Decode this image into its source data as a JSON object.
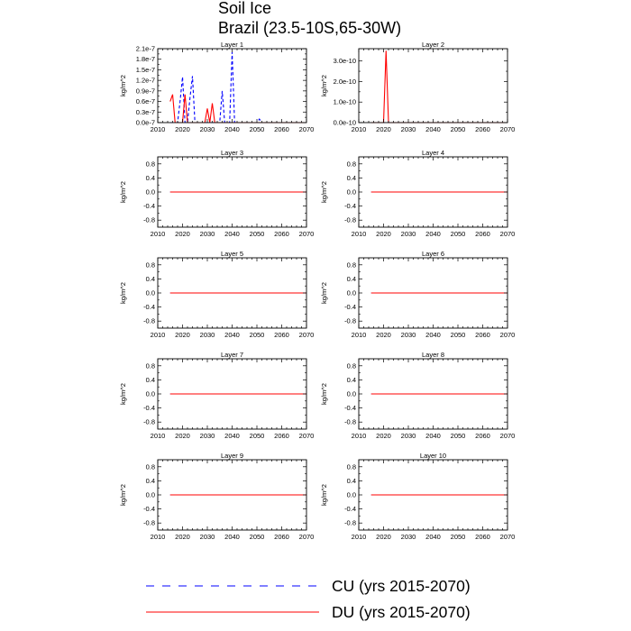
{
  "title": "Soil Ice",
  "subtitle": "Brazil (23.5-10S,65-30W)",
  "colors": {
    "CU": "#0000ff",
    "DU": "#ff0000"
  },
  "legend": [
    {
      "key": "CU",
      "label": "CU (yrs 2015-2070)",
      "style": "dashed"
    },
    {
      "key": "DU",
      "label": "DU (yrs 2015-2070)",
      "style": "solid"
    }
  ],
  "chart_data": [
    {
      "type": "line",
      "title": "Layer 1",
      "ylabel": "kg/m^2",
      "xlim": [
        2010,
        2070
      ],
      "ylim": [
        0,
        2.1e-07
      ],
      "xticks": [
        2010,
        2020,
        2030,
        2040,
        2050,
        2060,
        2070
      ],
      "yticks": [
        0,
        3e-08,
        6e-08,
        9e-08,
        1.2e-07,
        1.5e-07,
        1.8e-07,
        2.1e-07
      ],
      "yticklabels": [
        "0.0e-7",
        "0.3e-7",
        "0.6e-7",
        "0.9e-7",
        "1.2e-7",
        "1.5e-7",
        "1.8e-7",
        "2.1e-7"
      ],
      "series": [
        {
          "name": "CU",
          "x": [
            2015,
            2016,
            2017,
            2018,
            2019,
            2020,
            2021,
            2022,
            2023,
            2024,
            2025,
            2026,
            2027,
            2028,
            2029,
            2030,
            2031,
            2032,
            2033,
            2034,
            2035,
            2036,
            2037,
            2038,
            2039,
            2040,
            2041,
            2042,
            2043,
            2044,
            2045,
            2046,
            2047,
            2048,
            2049,
            2050,
            2051,
            2052,
            2053,
            2054,
            2055,
            2056,
            2057,
            2058,
            2059,
            2060,
            2061,
            2062,
            2063,
            2064,
            2065,
            2066,
            2067,
            2068,
            2069,
            2070
          ],
          "y": [
            0,
            0,
            0,
            0,
            6e-08,
            1.3e-07,
            0,
            0,
            7e-08,
            1.32e-07,
            0,
            0,
            0,
            0,
            0,
            0,
            0,
            0,
            0,
            0,
            0,
            9e-08,
            0,
            0,
            0,
            2e-07,
            0,
            0,
            0,
            0,
            0,
            0,
            0,
            0,
            0,
            0,
            1e-08,
            0,
            0,
            0,
            0,
            0,
            0,
            0,
            0,
            0,
            0,
            0,
            0,
            0,
            0,
            0,
            0,
            0,
            0,
            0
          ]
        },
        {
          "name": "DU",
          "x": [
            2015,
            2016,
            2017,
            2018,
            2019,
            2020,
            2021,
            2022,
            2023,
            2024,
            2025,
            2026,
            2027,
            2028,
            2029,
            2030,
            2031,
            2032,
            2033,
            2034,
            2035,
            2036,
            2037,
            2038,
            2039,
            2040,
            2041,
            2042,
            2043,
            2044,
            2045,
            2046,
            2047,
            2048,
            2049,
            2050,
            2051,
            2052,
            2053,
            2054,
            2055,
            2056,
            2057,
            2058,
            2059,
            2060,
            2061,
            2062,
            2063,
            2064,
            2065,
            2066,
            2067,
            2068,
            2069,
            2070
          ],
          "y": [
            6e-08,
            8e-08,
            0,
            0,
            0,
            0,
            8e-08,
            0,
            0,
            0,
            0,
            0,
            0,
            0,
            0,
            4e-08,
            0,
            5.5e-08,
            0,
            0,
            0,
            0,
            0,
            0,
            0,
            0,
            0,
            0,
            0,
            0,
            0,
            0,
            0,
            0,
            0,
            0,
            0,
            0,
            0,
            0,
            0,
            0,
            0,
            0,
            0,
            0,
            0,
            0,
            0,
            0,
            0,
            0,
            0,
            0,
            0,
            0
          ]
        }
      ]
    },
    {
      "type": "line",
      "title": "Layer 2",
      "ylabel": "kg/m^2",
      "xlim": [
        2010,
        2070
      ],
      "ylim": [
        0,
        3.6e-10
      ],
      "xticks": [
        2010,
        2020,
        2030,
        2040,
        2050,
        2060,
        2070
      ],
      "yticks": [
        0,
        1e-10,
        2e-10,
        3e-10
      ],
      "yticklabels": [
        "0.0e-10",
        "1.0e-10",
        "2.0e-10",
        "3.0e-10"
      ],
      "series": [
        {
          "name": "CU",
          "x": [
            2015,
            2070
          ],
          "y": [
            0,
            0
          ]
        },
        {
          "name": "DU",
          "x": [
            2015,
            2016,
            2017,
            2018,
            2019,
            2020,
            2021,
            2022,
            2023,
            2024,
            2070
          ],
          "y": [
            0,
            0,
            0,
            0,
            0,
            0,
            3.5e-10,
            0,
            0,
            0,
            0
          ]
        }
      ]
    },
    {
      "type": "line",
      "title": "Layer 3",
      "ylabel": "kg/m^2",
      "xlim": [
        2010,
        2070
      ],
      "ylim": [
        -1,
        1
      ],
      "xticks": [
        2010,
        2020,
        2030,
        2040,
        2050,
        2060,
        2070
      ],
      "yticks": [
        -0.8,
        -0.4,
        0,
        0.4,
        0.8
      ],
      "yticklabels": [
        "-0.8",
        "-0.4",
        "0.0",
        "0.4",
        "0.8"
      ],
      "series": [
        {
          "name": "CU",
          "x": [
            2015,
            2070
          ],
          "y": [
            0,
            0
          ]
        },
        {
          "name": "DU",
          "x": [
            2015,
            2070
          ],
          "y": [
            0,
            0
          ]
        }
      ]
    },
    {
      "type": "line",
      "title": "Layer 4",
      "ylabel": "kg/m^2",
      "xlim": [
        2010,
        2070
      ],
      "ylim": [
        -1,
        1
      ],
      "xticks": [
        2010,
        2020,
        2030,
        2040,
        2050,
        2060,
        2070
      ],
      "yticks": [
        -0.8,
        -0.4,
        0,
        0.4,
        0.8
      ],
      "yticklabels": [
        "-0.8",
        "-0.4",
        "0.0",
        "0.4",
        "0.8"
      ],
      "series": [
        {
          "name": "CU",
          "x": [
            2015,
            2070
          ],
          "y": [
            0,
            0
          ]
        },
        {
          "name": "DU",
          "x": [
            2015,
            2070
          ],
          "y": [
            0,
            0
          ]
        }
      ]
    },
    {
      "type": "line",
      "title": "Layer 5",
      "ylabel": "kg/m^2",
      "xlim": [
        2010,
        2070
      ],
      "ylim": [
        -1,
        1
      ],
      "xticks": [
        2010,
        2020,
        2030,
        2040,
        2050,
        2060,
        2070
      ],
      "yticks": [
        -0.8,
        -0.4,
        0,
        0.4,
        0.8
      ],
      "yticklabels": [
        "-0.8",
        "-0.4",
        "0.0",
        "0.4",
        "0.8"
      ],
      "series": [
        {
          "name": "CU",
          "x": [
            2015,
            2070
          ],
          "y": [
            0,
            0
          ]
        },
        {
          "name": "DU",
          "x": [
            2015,
            2070
          ],
          "y": [
            0,
            0
          ]
        }
      ]
    },
    {
      "type": "line",
      "title": "Layer 6",
      "ylabel": "kg/m^2",
      "xlim": [
        2010,
        2070
      ],
      "ylim": [
        -1,
        1
      ],
      "xticks": [
        2010,
        2020,
        2030,
        2040,
        2050,
        2060,
        2070
      ],
      "yticks": [
        -0.8,
        -0.4,
        0,
        0.4,
        0.8
      ],
      "yticklabels": [
        "-0.8",
        "-0.4",
        "0.0",
        "0.4",
        "0.8"
      ],
      "series": [
        {
          "name": "CU",
          "x": [
            2015,
            2070
          ],
          "y": [
            0,
            0
          ]
        },
        {
          "name": "DU",
          "x": [
            2015,
            2070
          ],
          "y": [
            0,
            0
          ]
        }
      ]
    },
    {
      "type": "line",
      "title": "Layer 7",
      "ylabel": "kg/m^2",
      "xlim": [
        2010,
        2070
      ],
      "ylim": [
        -1,
        1
      ],
      "xticks": [
        2010,
        2020,
        2030,
        2040,
        2050,
        2060,
        2070
      ],
      "yticks": [
        -0.8,
        -0.4,
        0,
        0.4,
        0.8
      ],
      "yticklabels": [
        "-0.8",
        "-0.4",
        "0.0",
        "0.4",
        "0.8"
      ],
      "series": [
        {
          "name": "CU",
          "x": [
            2015,
            2070
          ],
          "y": [
            0,
            0
          ]
        },
        {
          "name": "DU",
          "x": [
            2015,
            2070
          ],
          "y": [
            0,
            0
          ]
        }
      ]
    },
    {
      "type": "line",
      "title": "Layer 8",
      "ylabel": "kg/m^2",
      "xlim": [
        2010,
        2070
      ],
      "ylim": [
        -1,
        1
      ],
      "xticks": [
        2010,
        2020,
        2030,
        2040,
        2050,
        2060,
        2070
      ],
      "yticks": [
        -0.8,
        -0.4,
        0,
        0.4,
        0.8
      ],
      "yticklabels": [
        "-0.8",
        "-0.4",
        "0.0",
        "0.4",
        "0.8"
      ],
      "series": [
        {
          "name": "CU",
          "x": [
            2015,
            2070
          ],
          "y": [
            0,
            0
          ]
        },
        {
          "name": "DU",
          "x": [
            2015,
            2070
          ],
          "y": [
            0,
            0
          ]
        }
      ]
    },
    {
      "type": "line",
      "title": "Layer 9",
      "ylabel": "kg/m^2",
      "xlim": [
        2010,
        2070
      ],
      "ylim": [
        -1,
        1
      ],
      "xticks": [
        2010,
        2020,
        2030,
        2040,
        2050,
        2060,
        2070
      ],
      "yticks": [
        -0.8,
        -0.4,
        0,
        0.4,
        0.8
      ],
      "yticklabels": [
        "-0.8",
        "-0.4",
        "0.0",
        "0.4",
        "0.8"
      ],
      "series": [
        {
          "name": "CU",
          "x": [
            2015,
            2070
          ],
          "y": [
            0,
            0
          ]
        },
        {
          "name": "DU",
          "x": [
            2015,
            2070
          ],
          "y": [
            0,
            0
          ]
        }
      ]
    },
    {
      "type": "line",
      "title": "Layer 10",
      "ylabel": "kg/m^2",
      "xlim": [
        2010,
        2070
      ],
      "ylim": [
        -1,
        1
      ],
      "xticks": [
        2010,
        2020,
        2030,
        2040,
        2050,
        2060,
        2070
      ],
      "yticks": [
        -0.8,
        -0.4,
        0,
        0.4,
        0.8
      ],
      "yticklabels": [
        "-0.8",
        "-0.4",
        "0.0",
        "0.4",
        "0.8"
      ],
      "series": [
        {
          "name": "CU",
          "x": [
            2015,
            2070
          ],
          "y": [
            0,
            0
          ]
        },
        {
          "name": "DU",
          "x": [
            2015,
            2070
          ],
          "y": [
            0,
            0
          ]
        }
      ]
    }
  ]
}
